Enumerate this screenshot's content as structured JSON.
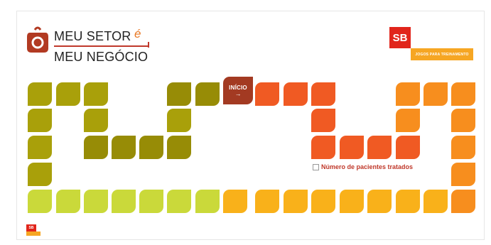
{
  "header": {
    "title_line1": "MEU SETOR",
    "title_accent": "é",
    "title_line2": "MEU NEGÓCIO",
    "logo_icon": "bag-icon"
  },
  "brand": {
    "badge": "SB",
    "banner": "JOGOS PARA TREINAMENTO",
    "badge_color": "#e1251b",
    "banner_color": "#f6a623"
  },
  "board": {
    "start_label": "INÍCIO",
    "start_arrow": "→",
    "legend_label": "Número de pacientes tratados"
  },
  "footer": {
    "mini_badge": "SB"
  },
  "colors": {
    "olive": "#a9a00a",
    "olive_dark": "#978c06",
    "lime": "#cad93a",
    "yellow": "#f9b11a",
    "orange": "#f78e1e",
    "red_orange": "#f05a23",
    "start": "#a33a22"
  }
}
